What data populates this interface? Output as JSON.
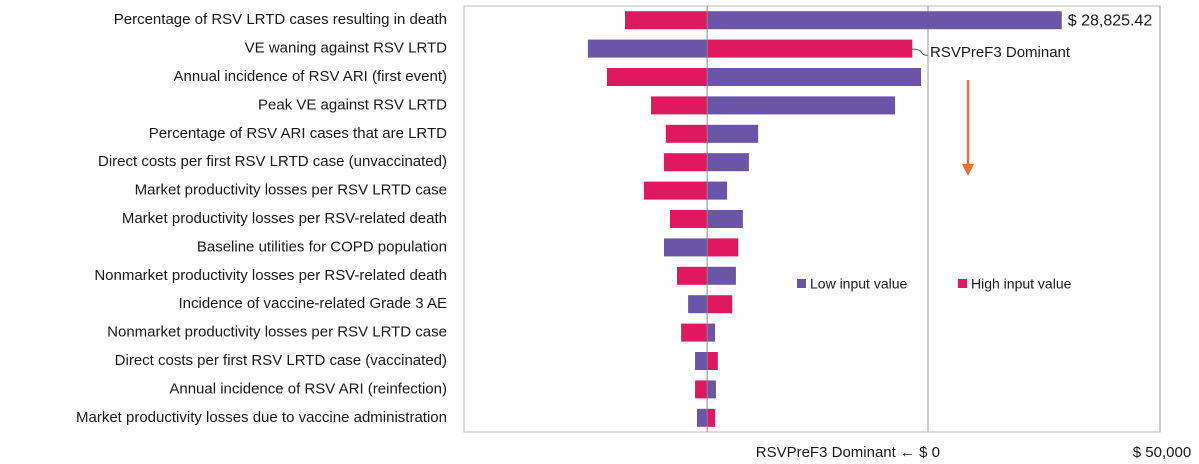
{
  "chart_data": {
    "type": "tornado",
    "categories": [
      "Percentage of RSV LRTD cases resulting in death",
      "VE waning against RSV LRTD",
      "Annual incidence of RSV ARI (first event)",
      "Peak VE against RSV LRTD",
      "Percentage of RSV ARI cases that are LRTD",
      "Direct costs per first RSV LRTD case (unvaccinated)",
      "Market productivity losses per RSV LRTD case",
      "Market productivity losses per RSV-related death",
      "Baseline utilities for COPD population",
      "Nonmarket productivity losses per RSV-related death",
      "Incidence of vaccine-related Grade 3 AE",
      "Nonmarket productivity losses per RSV LRTD case",
      "Direct costs per first RSV LRTD case (vaccinated)",
      "Annual incidence of RSV ARI (reinfection)",
      "Market productivity losses due to vaccine administration"
    ],
    "base": -47600,
    "series": [
      {
        "name": "Low input value",
        "color": "#6a55a8",
        "values": [
          28825.42,
          -73300,
          -1500,
          -7100,
          -36600,
          -38600,
          -43300,
          -39900,
          -56900,
          -41400,
          -51700,
          -45900,
          -50200,
          -45700,
          -49800
        ],
        "value_labels": [
          "$ 28,825.42",
          null,
          null,
          null,
          null,
          null,
          null,
          null,
          null,
          null,
          null,
          null,
          null,
          null,
          null
        ]
      },
      {
        "name": "High input value",
        "color": "#e0195f",
        "values": [
          -65300,
          -3400,
          -69200,
          -59700,
          -56500,
          -56900,
          -61200,
          -55600,
          -40900,
          -54100,
          -42200,
          -53200,
          -45300,
          -50200,
          -45900
        ]
      }
    ],
    "xlim": [
      -100000,
      50000
    ],
    "xticks": [
      {
        "value": 0,
        "label": "RSVPreF3 Dominant ← $ 0"
      },
      {
        "value": 50000,
        "label": "$ 50,000"
      }
    ],
    "annotations": [
      "RSVPreF3 Dominant"
    ]
  }
}
